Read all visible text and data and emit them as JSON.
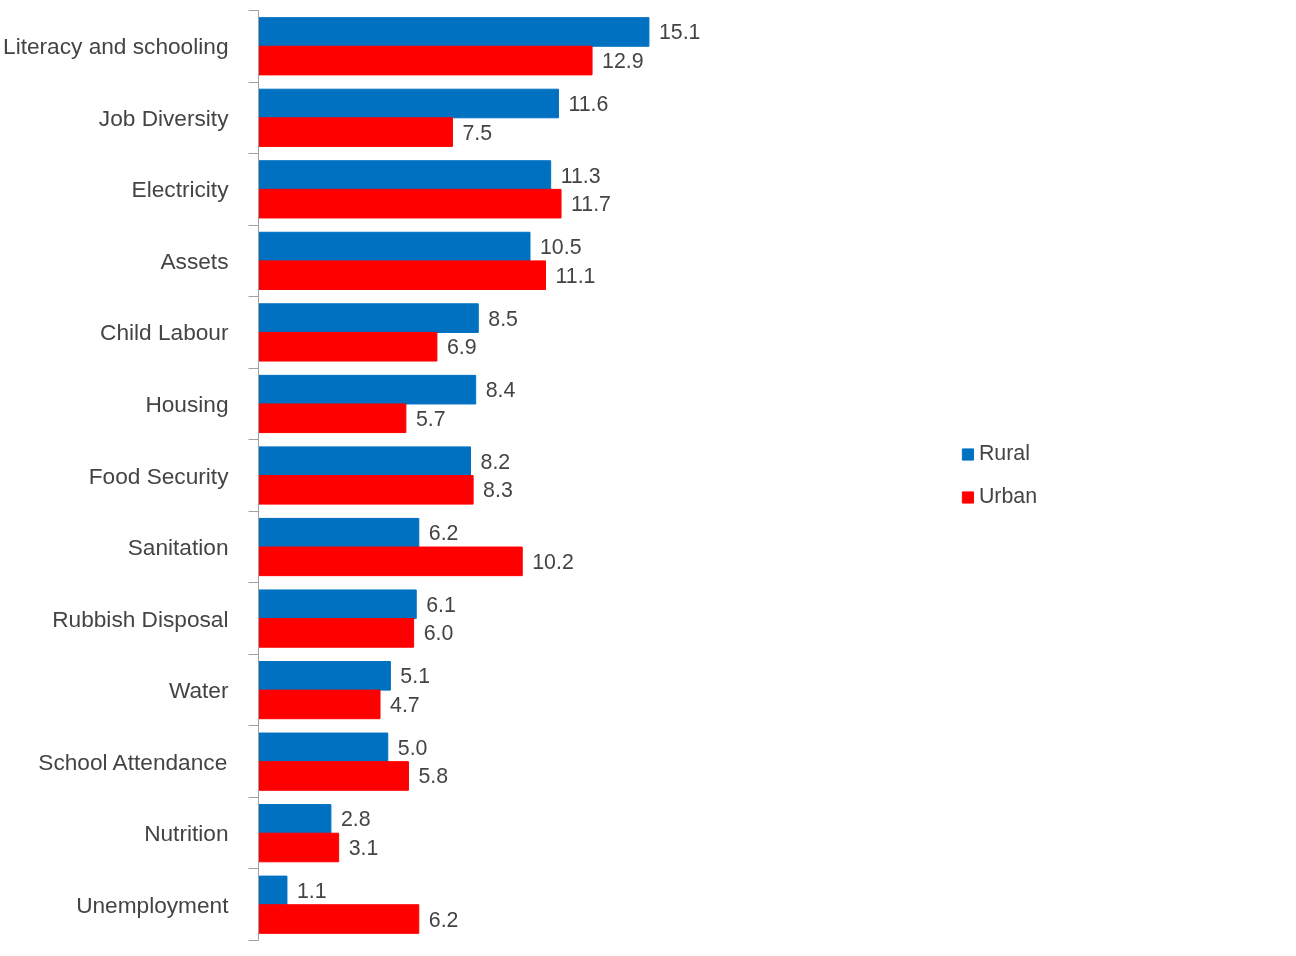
{
  "chart_data": {
    "type": "bar",
    "orientation": "horizontal",
    "categories": [
      "Literacy and schooling",
      "Job Diversity",
      "Electricity",
      "Assets",
      "Child Labour",
      "Housing",
      "Food Security",
      "Sanitation",
      "Rubbish Disposal",
      "Water",
      "School Attendance",
      "Nutrition",
      "Unemployment"
    ],
    "series": [
      {
        "name": "Rural",
        "color": "#0070c0",
        "values": [
          15.1,
          11.6,
          11.3,
          10.5,
          8.5,
          8.4,
          8.2,
          6.2,
          6.1,
          5.1,
          5.0,
          2.8,
          1.1
        ],
        "value_labels": [
          "15.1",
          "11.6",
          "11.3",
          "10.5",
          "8.5",
          "8.4",
          "8.2",
          "6.2",
          "6.1",
          "5.1",
          "5.0",
          "2.8",
          "1.1"
        ]
      },
      {
        "name": "Urban",
        "color": "#ff0000",
        "values": [
          12.9,
          7.5,
          11.7,
          11.1,
          6.9,
          5.7,
          8.3,
          10.2,
          6.0,
          4.7,
          5.8,
          3.1,
          6.2
        ],
        "value_labels": [
          "12.9",
          "7.5",
          "11.7",
          "11.1",
          "6.9",
          "5.7",
          "8.3",
          "10.2",
          "6.0",
          "4.7",
          "5.8",
          "3.1",
          "6.2"
        ]
      }
    ],
    "grid": false,
    "legend": "right",
    "tick_labels": "y"
  }
}
